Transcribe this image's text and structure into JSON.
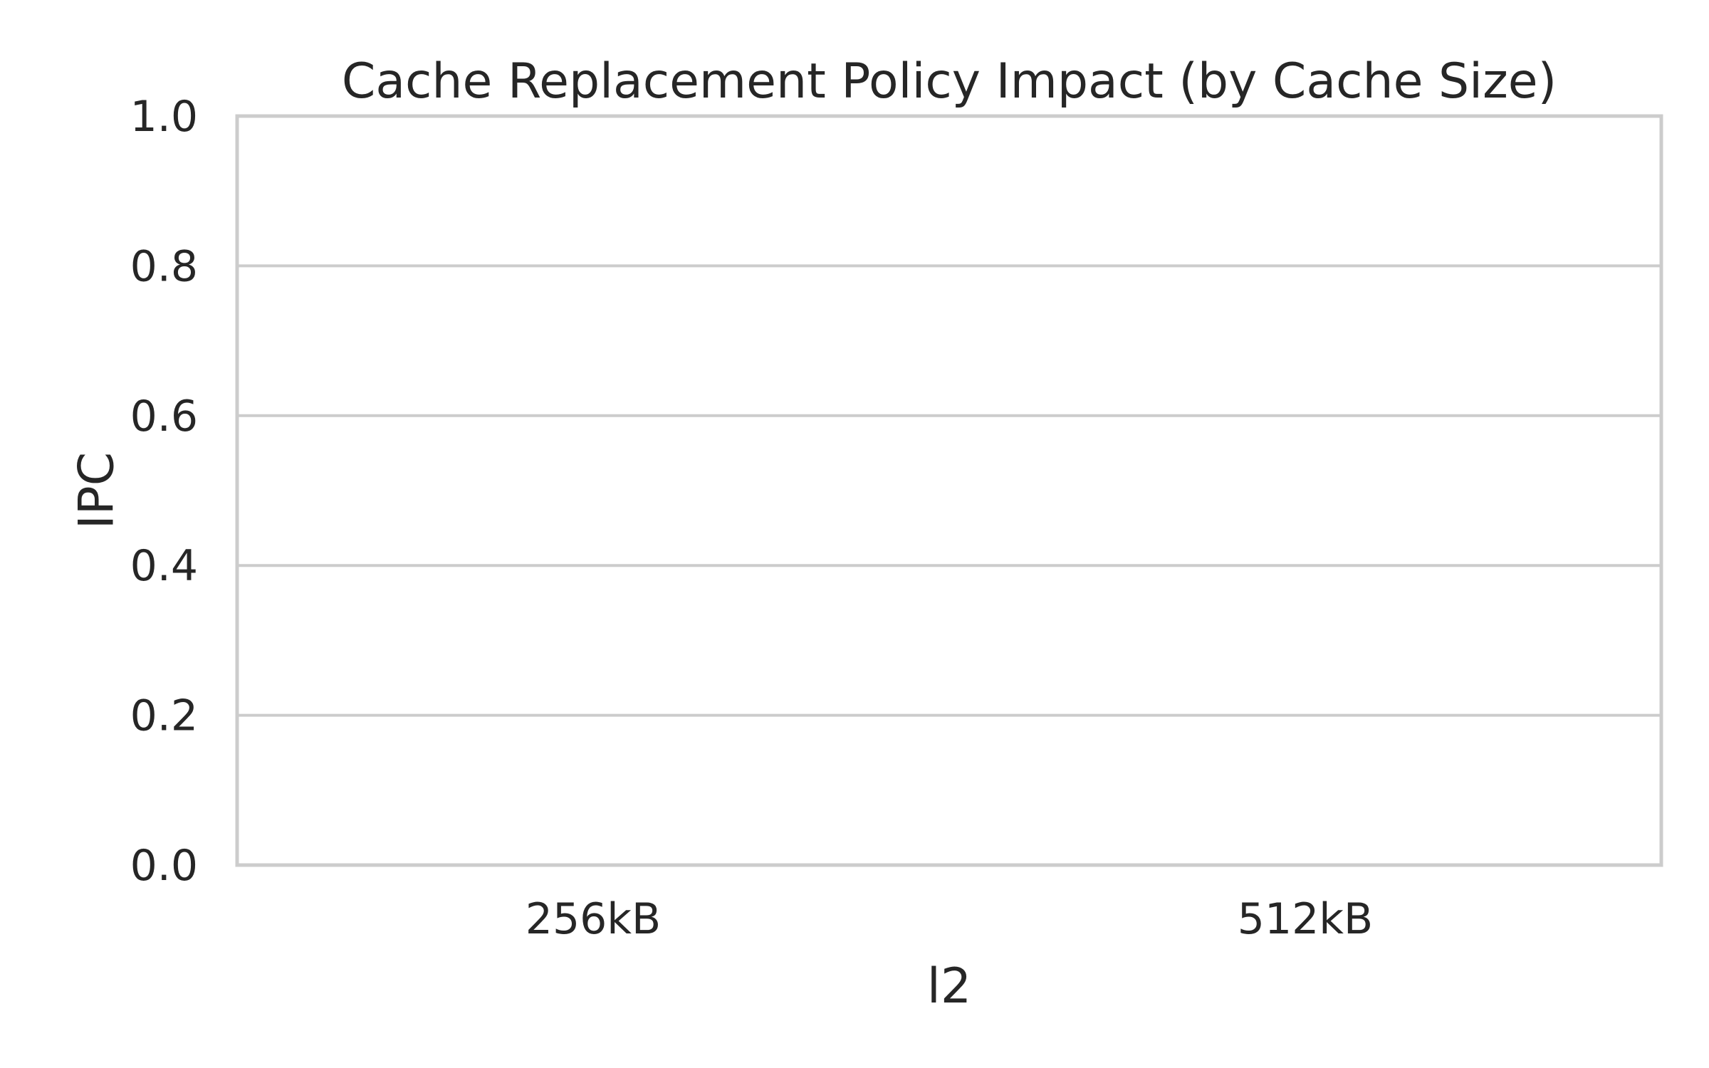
{
  "chart_data": {
    "type": "bar",
    "title": "Cache Replacement Policy Impact (by Cache Size)",
    "xlabel": "l2",
    "ylabel": "IPC",
    "categories": [
      "256kB",
      "512kB"
    ],
    "series": [],
    "ylim": [
      0,
      1.0
    ],
    "yticks": [
      0.0,
      0.2,
      0.4,
      0.6,
      0.8,
      1.0
    ],
    "ytick_labels": [
      "0.0",
      "0.2",
      "0.4",
      "0.6",
      "0.8",
      "1.0"
    ],
    "grid": true,
    "grid_axis": "y",
    "legend": "none",
    "colors": {
      "grid": "#cccccc",
      "spine": "#cccccc",
      "text": "#262626",
      "background": "#ffffff"
    }
  }
}
